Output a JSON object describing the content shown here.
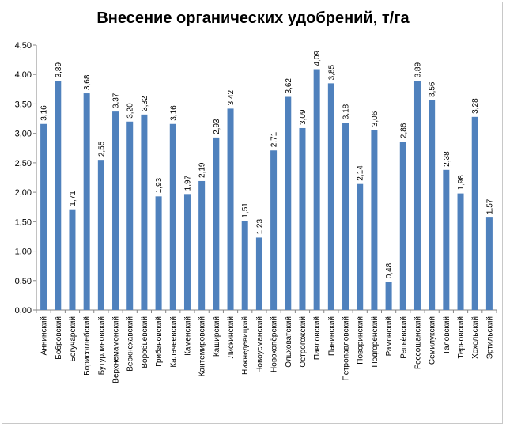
{
  "chart_data": {
    "type": "bar",
    "title": "Внесение органических удобрений,  т/га",
    "xlabel": "",
    "ylabel": "",
    "ylim": [
      0,
      4.5
    ],
    "y_ticks": [
      "0,00",
      "0,50",
      "1,00",
      "1,50",
      "2,00",
      "2,50",
      "3,00",
      "3,50",
      "4,00",
      "4,50"
    ],
    "grid": false,
    "legend": "none",
    "bar_color": "#4f81bd",
    "categories": [
      "Аннинский",
      "Бобровский",
      "Богучарский",
      "Борисоглебский",
      "Бутурлиновский",
      "Верхнемамонский",
      "Верхнехавский",
      "Воробьёвский",
      "Грибановский",
      "Калачеевский",
      "Каменский",
      "Кантемировский",
      "Каширский",
      "Лискинский",
      "Нижнедевицкий",
      "Новоусманский",
      "Новохопёрский",
      "Ольховатский",
      "Острогожский",
      "Павловский",
      "Панинский",
      "Петропавловский",
      "Поворинский",
      "Подгоренский",
      "Рамонский",
      "Репьёвский",
      "Россошанский",
      "Семилукский",
      "Таловский",
      "Терновский",
      "Хохольский",
      "Эртильский"
    ],
    "values": [
      3.16,
      3.89,
      1.71,
      3.68,
      2.55,
      3.37,
      3.2,
      3.32,
      1.93,
      3.16,
      1.97,
      2.19,
      2.93,
      3.42,
      1.51,
      1.23,
      2.71,
      3.62,
      3.09,
      4.09,
      3.85,
      3.18,
      2.14,
      3.06,
      0.48,
      2.86,
      3.89,
      3.56,
      2.38,
      1.98,
      3.28,
      1.57
    ],
    "data_labels": [
      "3,16",
      "3,89",
      "1,71",
      "3,68",
      "2,55",
      "3,37",
      "3,20",
      "3,32",
      "1,93",
      "3,16",
      "1,97",
      "2,19",
      "2,93",
      "3,42",
      "1,51",
      "1,23",
      "2,71",
      "3,62",
      "3,09",
      "4,09",
      "3,85",
      "3,18",
      "2,14",
      "3,06",
      "0,48",
      "2,86",
      "3,89",
      "3,56",
      "2,38",
      "1,98",
      "3,28",
      "1,57"
    ]
  }
}
